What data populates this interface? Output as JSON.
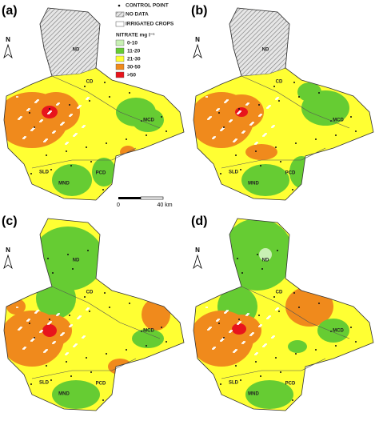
{
  "panels": [
    {
      "label": "(a)",
      "north": "N",
      "regions": [
        "ND",
        "CD",
        "MCD",
        "SLD",
        "MND",
        "PCD"
      ]
    },
    {
      "label": "(b)",
      "north": "N",
      "regions": [
        "ND",
        "CD",
        "MCD",
        "SLD",
        "MND",
        "PCD"
      ]
    },
    {
      "label": "(c)",
      "north": "N",
      "regions": [
        "ND",
        "CD",
        "MCD",
        "SLD",
        "MND",
        "PCD"
      ]
    },
    {
      "label": "(d)",
      "north": "N",
      "regions": [
        "ND",
        "CD",
        "MCD",
        "SLD",
        "MND",
        "PCD"
      ]
    }
  ],
  "legend": {
    "control_point": "CONTROL POINT",
    "no_data": "NO DATA",
    "irrigated_crops": "IRRIGATED CROPS",
    "title": "NITRATE mg l⁻¹",
    "items": [
      {
        "label": "0-10",
        "color": "#c8f0b4"
      },
      {
        "label": "11-20",
        "color": "#66cc33"
      },
      {
        "label": "21-30",
        "color": "#ffff33"
      },
      {
        "label": "30-50",
        "color": "#f08a1c"
      },
      {
        "label": ">50",
        "color": "#e8141c"
      }
    ]
  },
  "scale": {
    "start": "0",
    "end": "40 km"
  }
}
